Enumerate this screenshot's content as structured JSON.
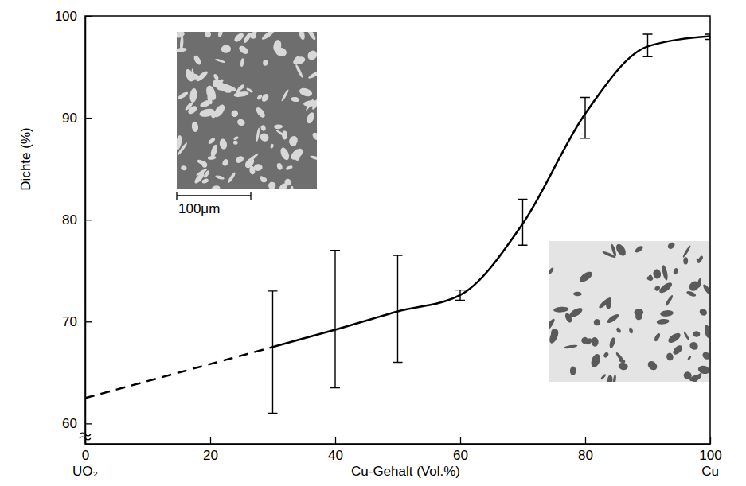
{
  "chart_data": {
    "type": "line",
    "x_label": "Cu-Gehalt (Vol.%)",
    "y_label": "Dichte (%)",
    "x_end_labels": [
      "UO₂",
      "Cu"
    ],
    "scale_bar_label": "100μm",
    "xlim": [
      0,
      100
    ],
    "ylim": [
      58,
      100
    ],
    "xticks": [
      0,
      20,
      40,
      60,
      80,
      100
    ],
    "yticks": [
      60,
      70,
      80,
      90,
      100
    ],
    "series": [
      {
        "x": [
          30,
          40,
          50,
          60,
          70,
          80,
          90,
          100
        ],
        "values": [
          67.5,
          69.2,
          71,
          72.6,
          79.6,
          90.4,
          97,
          98
        ],
        "error_low": [
          61,
          63.5,
          66,
          72.1,
          77.5,
          88,
          96,
          97.7
        ],
        "error_high": [
          73,
          77,
          76.5,
          73.1,
          82,
          92,
          98.2,
          98.2
        ],
        "color": "#000000",
        "line_style": "solid"
      },
      {
        "x": [
          0,
          30
        ],
        "values": [
          62.5,
          67.5
        ],
        "color": "#000000",
        "line_style": "dashed"
      }
    ]
  }
}
